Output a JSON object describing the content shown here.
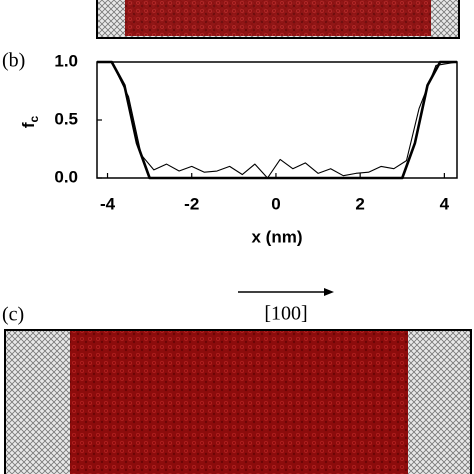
{
  "panel_b_label": "(b)",
  "panel_c_label": "(c)",
  "direction_label": "[100]",
  "chart_data": {
    "type": "line",
    "xlabel": "x (nm)",
    "ylabel": "f",
    "ylabel_subscript": "c",
    "xlim": [
      -4.25,
      4.3
    ],
    "ylim": [
      0,
      1
    ],
    "xticks": [
      -4,
      -2,
      0,
      2,
      4
    ],
    "yticks": [
      {
        "value": 0,
        "label": "0.0"
      },
      {
        "value": 0.5,
        "label": "0.5"
      },
      {
        "value": 1,
        "label": "1.0"
      }
    ],
    "series": [
      {
        "color": "#000000",
        "width": 2.6,
        "x": [
          -4.25,
          -3.9,
          -3.6,
          -3.3,
          -3.0,
          3.0,
          3.3,
          3.6,
          3.9,
          4.3
        ],
        "values": [
          1,
          1,
          0.8,
          0.3,
          0,
          0,
          0.3,
          0.8,
          1,
          1
        ]
      },
      {
        "color": "#000000",
        "width": 1.1,
        "x": [
          -4.25,
          -3.9,
          -3.5,
          -3.2,
          -2.9,
          -2.6,
          -2.3,
          -2.0,
          -1.7,
          -1.4,
          -1.1,
          -0.8,
          -0.5,
          -0.2,
          0.1,
          0.4,
          0.7,
          1.0,
          1.3,
          1.6,
          1.9,
          2.2,
          2.5,
          2.8,
          3.1,
          3.4,
          3.8,
          4.3
        ],
        "values": [
          1,
          1,
          0.7,
          0.2,
          0.07,
          0.12,
          0.06,
          0.1,
          0.05,
          0.06,
          0.1,
          0.03,
          0.12,
          0.0,
          0.16,
          0.08,
          0.13,
          0.04,
          0.08,
          0.02,
          0.04,
          0.05,
          0.1,
          0.08,
          0.15,
          0.6,
          0.97,
          1
        ]
      }
    ]
  }
}
